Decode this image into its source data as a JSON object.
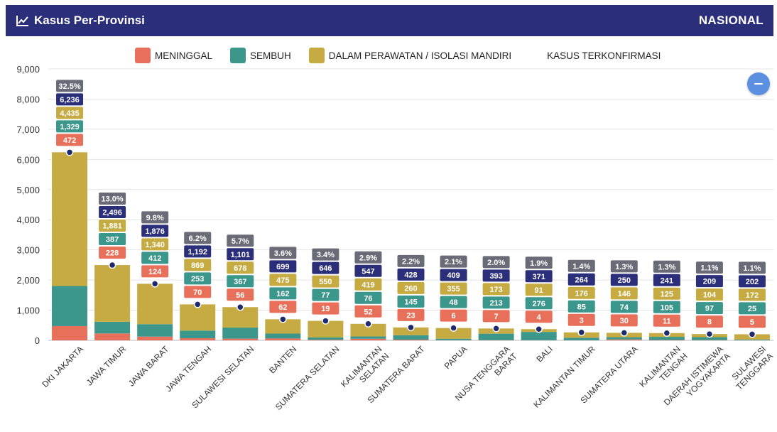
{
  "header": {
    "title": "Kasus Per-Provinsi",
    "right_label": "NASIONAL",
    "bg_color": "#2b2f7a"
  },
  "legend": [
    {
      "label": "MENINGGAL",
      "color": "#e8705a"
    },
    {
      "label": "SEMBUH",
      "color": "#3b968c"
    },
    {
      "label": "DALAM PERAWATAN / ISOLASI MANDIRI",
      "color": "#c5ab41"
    },
    {
      "label": "KASUS TERKONFIRMASI",
      "color": ""
    }
  ],
  "colors": {
    "meninggal": "#e8705a",
    "sembuh": "#3b968c",
    "perawatan": "#c5ab41",
    "confirmed_label": "#2b2f7a",
    "percent_label": "#6b6b78",
    "marker": "#1e2a6e"
  },
  "chart_data": {
    "type": "bar",
    "stacked": true,
    "ylim": [
      0,
      9000
    ],
    "yticks": [
      "0",
      "1,000",
      "2,000",
      "3,000",
      "4,000",
      "5,000",
      "6,000",
      "7,000",
      "8,000",
      "9,000"
    ],
    "grid": true,
    "legend_position": "top",
    "categories": [
      {
        "lines": [
          "DKI JAKARTA"
        ]
      },
      {
        "lines": [
          "JAWA TIMUR"
        ]
      },
      {
        "lines": [
          "JAWA BARAT"
        ]
      },
      {
        "lines": [
          "JAWA TENGAH"
        ]
      },
      {
        "lines": [
          "SULAWESI SELATAN"
        ]
      },
      {
        "lines": [
          "BANTEN"
        ]
      },
      {
        "lines": [
          "SUMATERA SELATAN"
        ]
      },
      {
        "lines": [
          "KALIMANTAN",
          "SELATAN"
        ]
      },
      {
        "lines": [
          "SUMATERA BARAT"
        ]
      },
      {
        "lines": [
          "PAPUA"
        ]
      },
      {
        "lines": [
          "NUSA TENGGARA",
          "BARAT"
        ]
      },
      {
        "lines": [
          "BALI"
        ]
      },
      {
        "lines": [
          "KALIMANTAN TIMUR"
        ]
      },
      {
        "lines": [
          "SUMATERA UTARA"
        ]
      },
      {
        "lines": [
          "KALIMANTAN",
          "TENGAH"
        ]
      },
      {
        "lines": [
          "DAERAH ISTIMEWA",
          "YOGYAKARTA"
        ]
      },
      {
        "lines": [
          "SULAWESI",
          "TENGGARA"
        ]
      }
    ],
    "series": [
      {
        "name": "MENINGGAL",
        "key": "meninggal",
        "values": [
          472,
          228,
          124,
          70,
          56,
          62,
          19,
          52,
          23,
          6,
          7,
          4,
          3,
          30,
          11,
          8,
          5
        ]
      },
      {
        "name": "SEMBUH",
        "key": "sembuh",
        "values": [
          1329,
          387,
          412,
          253,
          367,
          162,
          77,
          76,
          145,
          48,
          213,
          276,
          85,
          74,
          105,
          97,
          25
        ]
      },
      {
        "name": "DALAM PERAWATAN / ISOLASI MANDIRI",
        "key": "perawatan",
        "values": [
          4435,
          1881,
          1340,
          869,
          678,
          475,
          550,
          419,
          260,
          355,
          173,
          91,
          176,
          146,
          125,
          104,
          172
        ]
      }
    ],
    "confirmed": [
      6236,
      2496,
      1876,
      1192,
      1101,
      699,
      646,
      547,
      428,
      409,
      393,
      371,
      264,
      250,
      241,
      209,
      202
    ],
    "percent": [
      "32.5%",
      "13.0%",
      "9.8%",
      "6.2%",
      "5.7%",
      "3.6%",
      "3.4%",
      "2.9%",
      "2.2%",
      "2.1%",
      "2.0%",
      "1.9%",
      "1.4%",
      "1.3%",
      "1.3%",
      "1.1%",
      "1.1%"
    ]
  }
}
